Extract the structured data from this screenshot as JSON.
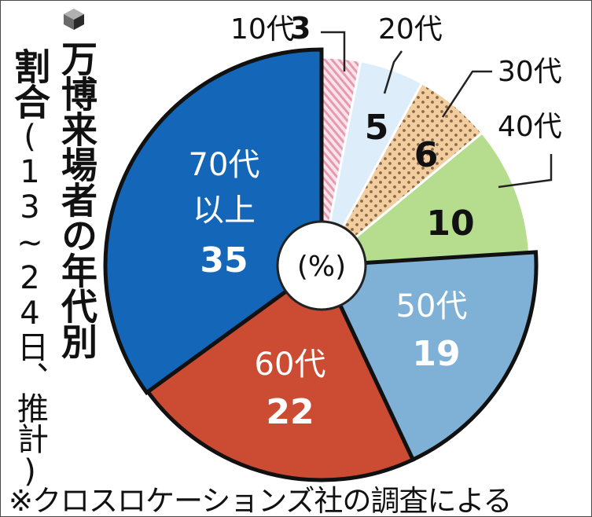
{
  "title": "万博来場者の年代別",
  "subtitle_main": "割合",
  "subtitle_paren": "(13~24日、推計)",
  "footnote": "※クロスロケーションズ社の調査による",
  "chart_data": {
    "type": "pie",
    "unit_label": "(%)",
    "slices": [
      {
        "label": "10代",
        "value": 3,
        "value_label": "3",
        "color": "#f4c6d3",
        "pattern": "hatch"
      },
      {
        "label": "20代",
        "value": 5,
        "value_label": "5",
        "color": "#ddeefa",
        "pattern": "none"
      },
      {
        "label": "30代",
        "value": 6,
        "value_label": "6",
        "color": "#f0c796",
        "pattern": "dots"
      },
      {
        "label": "40代",
        "value": 10,
        "value_label": "10",
        "color": "#b6dc8e",
        "pattern": "none"
      },
      {
        "label": "50代",
        "value": 19,
        "value_label": "19",
        "color": "#7fb1d6",
        "pattern": "none"
      },
      {
        "label": "60代",
        "value": 22,
        "value_label": "22",
        "color": "#cc4b33",
        "pattern": "none"
      },
      {
        "label": "70代以上",
        "value": 35,
        "value_label": "35",
        "color": "#1366b8",
        "pattern": "none"
      }
    ]
  }
}
